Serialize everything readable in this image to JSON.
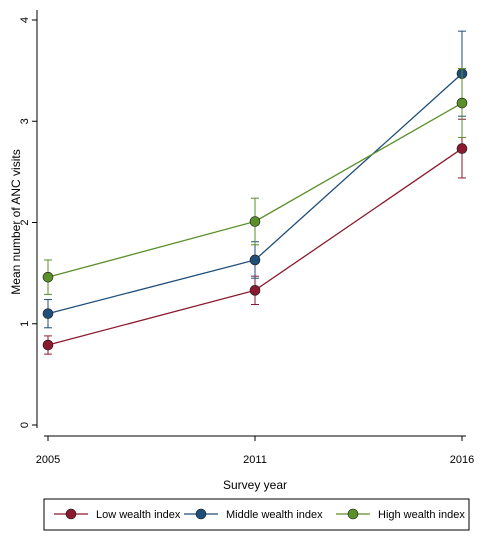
{
  "chart_data": {
    "type": "line",
    "title": "",
    "xlabel": "Survey year",
    "ylabel": "Mean number of ANC visits",
    "x": [
      "2005",
      "2011",
      "2016"
    ],
    "ylim": [
      0,
      4
    ],
    "yticks": [
      "0",
      "1",
      "2",
      "3",
      "4"
    ],
    "grid": false,
    "legend_position": "bottom",
    "series": [
      {
        "name": "Low wealth index",
        "color": "#8b1a2e",
        "values": [
          0.79,
          1.33,
          2.73
        ],
        "ci_low": [
          0.7,
          1.19,
          2.44
        ],
        "ci_high": [
          0.88,
          1.47,
          3.02
        ]
      },
      {
        "name": "Middle wealth index",
        "color": "#1f4e79",
        "values": [
          1.1,
          1.63,
          3.47
        ],
        "ci_low": [
          0.96,
          1.45,
          3.05
        ],
        "ci_high": [
          1.24,
          1.81,
          3.89
        ]
      },
      {
        "name": "High wealth index",
        "color": "#5a8f2a",
        "values": [
          1.46,
          2.01,
          3.18
        ],
        "ci_low": [
          1.29,
          1.78,
          2.84
        ],
        "ci_high": [
          1.63,
          2.24,
          3.52
        ]
      }
    ]
  }
}
